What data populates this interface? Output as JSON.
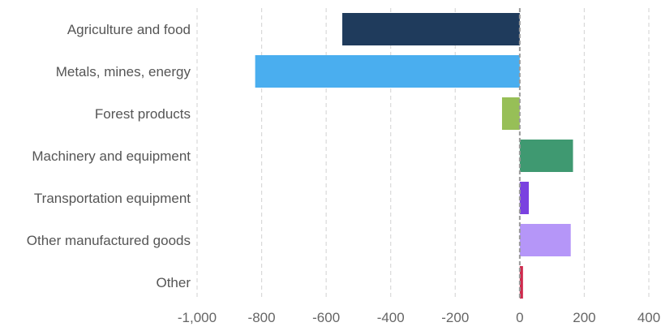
{
  "chart_data": {
    "type": "bar",
    "orientation": "horizontal",
    "categories": [
      "Agriculture and food",
      "Metals, mines, energy",
      "Forest products",
      "Machinery and equipment",
      "Transportation equipment",
      "Other manufactured goods",
      "Other"
    ],
    "values": [
      -550,
      -820,
      -55,
      165,
      28,
      158,
      10
    ],
    "colors": [
      "#1f3b5c",
      "#4aaeef",
      "#97bf57",
      "#3f9971",
      "#7a41e0",
      "#b596f8",
      "#cf2a4d"
    ],
    "xlim": [
      -1000,
      400
    ],
    "xticks": [
      -1000,
      -800,
      -600,
      -400,
      -200,
      0,
      200,
      400
    ],
    "xtick_labels": [
      "-1,000",
      "-800",
      "-600",
      "-400",
      "-200",
      "0",
      "200",
      "400"
    ],
    "grid": "vertical dashed",
    "title": "",
    "xlabel": "",
    "ylabel": ""
  }
}
